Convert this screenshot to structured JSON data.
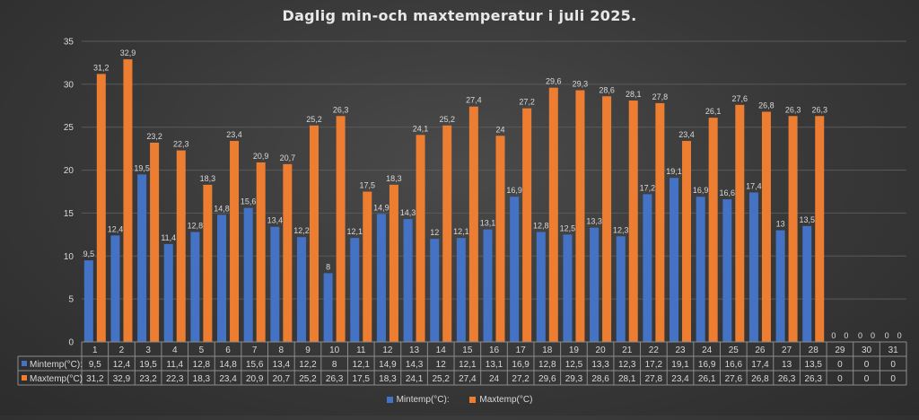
{
  "chart_data": {
    "type": "bar",
    "title": "Daglig min-och maxtemperatur i juli 2025.",
    "xlabel": "",
    "ylabel": "",
    "ylim": [
      0,
      35
    ],
    "yticks": [
      0,
      5,
      10,
      15,
      20,
      25,
      30,
      35
    ],
    "grid": true,
    "legend_position": "bottom",
    "data_table": true,
    "categories": [
      "1",
      "2",
      "3",
      "4",
      "5",
      "6",
      "7",
      "8",
      "9",
      "10",
      "11",
      "12",
      "13",
      "14",
      "15",
      "16",
      "17",
      "18",
      "19",
      "20",
      "21",
      "22",
      "23",
      "24",
      "25",
      "26",
      "27",
      "28",
      "29",
      "30",
      "31"
    ],
    "series": [
      {
        "name": "Mintemp(°C):",
        "color": "#4472c4",
        "values": [
          9.5,
          12.4,
          19.5,
          11.4,
          12.8,
          14.8,
          15.6,
          13.4,
          12.2,
          8,
          12.1,
          14.9,
          14.3,
          12,
          12.1,
          13.1,
          16.9,
          12.8,
          12.5,
          13.3,
          12.3,
          17.2,
          19.1,
          16.9,
          16.6,
          17.4,
          13,
          13.5,
          0,
          0,
          0
        ],
        "labels": [
          "9,5",
          "12,4",
          "19,5",
          "11,4",
          "12,8",
          "14,8",
          "15,6",
          "13,4",
          "12,2",
          "8",
          "12,1",
          "14,9",
          "14,3",
          "12",
          "12,1",
          "13,1",
          "16,9",
          "12,8",
          "12,5",
          "13,3",
          "12,3",
          "17,2",
          "19,1",
          "16,9",
          "16,6",
          "17,4",
          "13",
          "13,5",
          "0",
          "0",
          "0"
        ]
      },
      {
        "name": "Maxtemp(°C)",
        "color": "#ed7d31",
        "values": [
          31.2,
          32.9,
          23.2,
          22.3,
          18.3,
          23.4,
          20.9,
          20.7,
          25.2,
          26.3,
          17.5,
          18.3,
          24.1,
          25.2,
          27.4,
          24,
          27.2,
          29.6,
          29.3,
          28.6,
          28.1,
          27.8,
          23.4,
          26.1,
          27.6,
          26.8,
          26.3,
          26.3,
          0,
          0,
          0
        ],
        "labels": [
          "31,2",
          "32,9",
          "23,2",
          "22,3",
          "18,3",
          "23,4",
          "20,9",
          "20,7",
          "25,2",
          "26,3",
          "17,5",
          "18,3",
          "24,1",
          "25,2",
          "27,4",
          "24",
          "27,2",
          "29,6",
          "29,3",
          "28,6",
          "28,1",
          "27,8",
          "23,4",
          "26,1",
          "27,6",
          "26,8",
          "26,3",
          "26,3",
          "0",
          "0",
          "0"
        ]
      }
    ]
  }
}
